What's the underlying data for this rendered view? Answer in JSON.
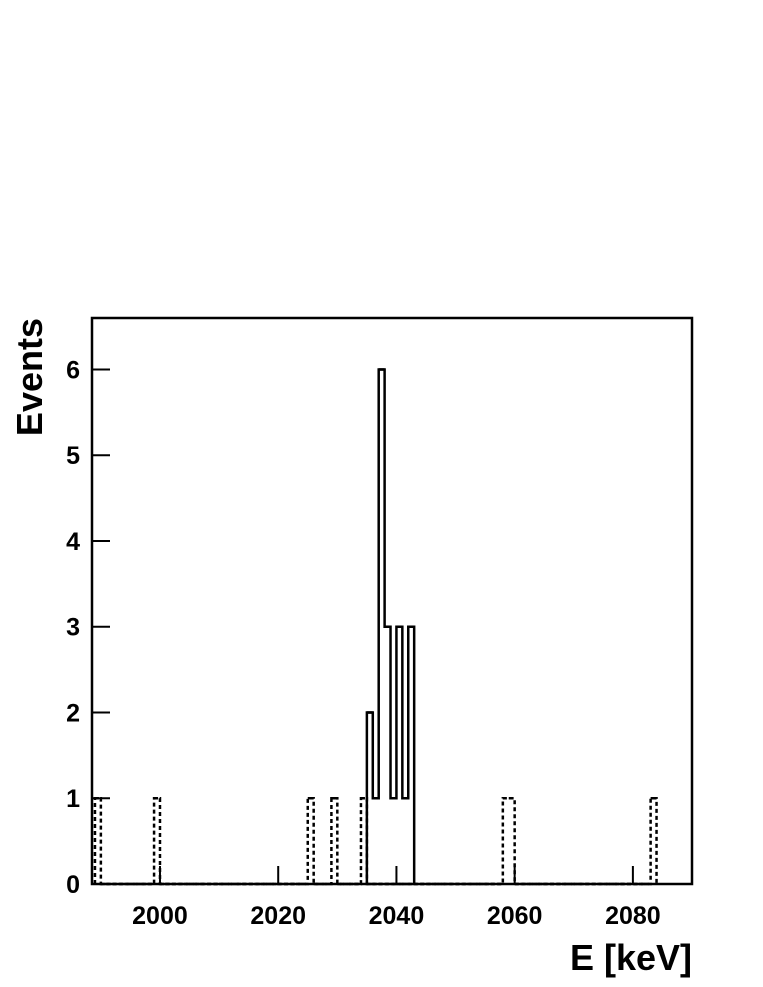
{
  "chart_data": {
    "type": "histogram",
    "xlabel": "E [keV]",
    "ylabel": "Events",
    "xlim": [
      1988.5,
      2090
    ],
    "ylim": [
      0,
      6.6
    ],
    "xticks": [
      2000,
      2020,
      2040,
      2060,
      2080
    ],
    "yticks": [
      0,
      1,
      2,
      3,
      4,
      5,
      6
    ],
    "grid": false,
    "series": [
      {
        "color": "#000000",
        "style": "dashed",
        "bins": [
          1989,
          1990,
          1991,
          1992,
          1993,
          1994,
          1995,
          1996,
          1997,
          1998,
          1999,
          2000,
          2001,
          2002,
          2003,
          2004,
          2005,
          2006,
          2007,
          2008,
          2009,
          2010,
          2011,
          2012,
          2013,
          2014,
          2015,
          2016,
          2017,
          2018,
          2019,
          2020,
          2021,
          2022,
          2023,
          2024,
          2025,
          2026,
          2027,
          2028,
          2029,
          2030,
          2031,
          2032,
          2033,
          2034,
          2035,
          2036,
          2037,
          2038,
          2039,
          2040,
          2041,
          2042,
          2043,
          2044,
          2045,
          2046,
          2047,
          2048,
          2049,
          2050,
          2051,
          2052,
          2053,
          2054,
          2055,
          2056,
          2057,
          2058,
          2059,
          2060,
          2061,
          2062,
          2063,
          2064,
          2065,
          2066,
          2067,
          2068,
          2069,
          2070,
          2071,
          2072,
          2073,
          2074,
          2075,
          2076,
          2077,
          2078,
          2079,
          2080,
          2081,
          2082,
          2083,
          2084
        ],
        "values": [
          1,
          0,
          0,
          0,
          0,
          0,
          0,
          0,
          0,
          0,
          1,
          0,
          0,
          0,
          0,
          0,
          0,
          0,
          0,
          0,
          0,
          0,
          0,
          0,
          0,
          0,
          0,
          0,
          0,
          0,
          0,
          0,
          0,
          0,
          0,
          0,
          1,
          0,
          0,
          0,
          1,
          0,
          0,
          0,
          0,
          1,
          0,
          0,
          0,
          0,
          0,
          0,
          0,
          0,
          0,
          0,
          0,
          0,
          0,
          0,
          0,
          0,
          0,
          0,
          0,
          0,
          0,
          0,
          0,
          1,
          1,
          0,
          0,
          0,
          0,
          0,
          0,
          0,
          0,
          0,
          0,
          0,
          0,
          0,
          0,
          0,
          0,
          0,
          0,
          0,
          0,
          0,
          0,
          0,
          1
        ]
      },
      {
        "color": "#000000",
        "style": "solid",
        "bins": [
          2035,
          2036,
          2037,
          2038,
          2039,
          2040,
          2041,
          2042,
          2043
        ],
        "values": [
          2,
          1,
          6,
          3,
          1,
          3,
          1,
          3
        ]
      }
    ]
  }
}
